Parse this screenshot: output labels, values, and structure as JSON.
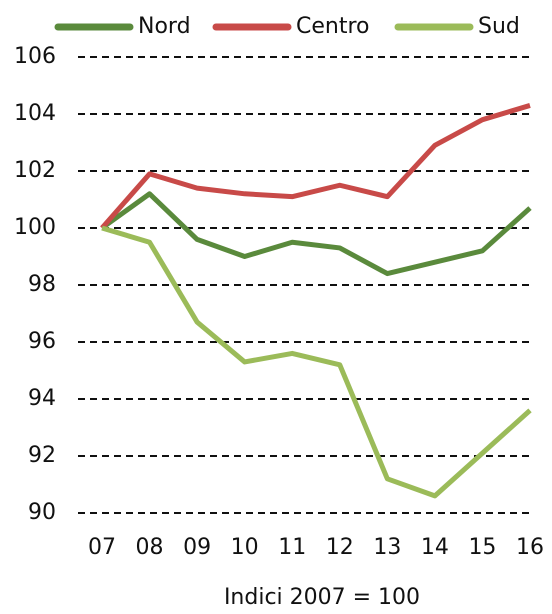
{
  "chart_data": {
    "type": "line",
    "x_label": "Indici 2007 = 100",
    "categories": [
      "07",
      "08",
      "09",
      "10",
      "11",
      "12",
      "13",
      "14",
      "15",
      "16"
    ],
    "series": [
      {
        "name": "Nord",
        "color": "#5a8a3c",
        "values": [
          100,
          101.2,
          99.6,
          99.0,
          99.5,
          99.3,
          98.4,
          98.8,
          99.2,
          100.7
        ]
      },
      {
        "name": "Centro",
        "color": "#c84a48",
        "values": [
          100,
          101.9,
          101.4,
          101.2,
          101.1,
          101.5,
          101.1,
          102.9,
          103.8,
          104.3
        ]
      },
      {
        "name": "Sud",
        "color": "#9bbb59",
        "values": [
          100,
          99.5,
          96.7,
          95.3,
          95.6,
          95.2,
          91.2,
          90.6,
          92.1,
          93.6
        ]
      }
    ],
    "ylim": [
      90,
      106
    ],
    "yticks": [
      90,
      92,
      94,
      96,
      98,
      100,
      102,
      104,
      106
    ],
    "grid": true,
    "legend": "top"
  }
}
